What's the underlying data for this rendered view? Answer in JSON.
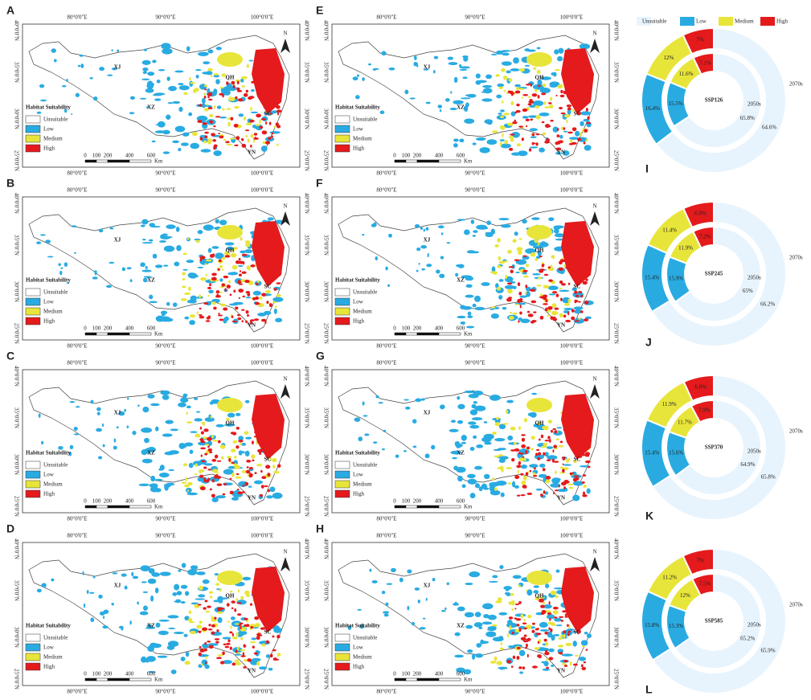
{
  "maps": {
    "panels": [
      "A",
      "B",
      "C",
      "D",
      "E",
      "F",
      "G",
      "H"
    ],
    "lon_labels": [
      "80°0'0\"E",
      "90°0'0\"E",
      "100°0'0\"E"
    ],
    "lat_labels": [
      "40°0'0\"N",
      "35°0'0\"N",
      "30°0'0\"N",
      "25°0'0\"N"
    ],
    "regions": [
      "XJ",
      "QH",
      "XZ",
      "SC",
      "YN"
    ],
    "north": "N",
    "legend_title": "Habitat Suitability",
    "legend_items": [
      {
        "name": "Unsuitable",
        "color": "#ffffff"
      },
      {
        "name": "Low",
        "color": "#29abe2"
      },
      {
        "name": "Medium",
        "color": "#e8e53a"
      },
      {
        "name": "High",
        "color": "#e41a1c"
      }
    ],
    "scale_labels": [
      "0",
      "100",
      "200",
      "400",
      "600"
    ],
    "scale_unit": "Km"
  },
  "donuts": {
    "legend": [
      {
        "name": "Unsuitable",
        "color": "#e8f4fd"
      },
      {
        "name": "Low",
        "color": "#29abe2"
      },
      {
        "name": "Medium",
        "color": "#e8e53a"
      },
      {
        "name": "High",
        "color": "#e41a1c"
      }
    ],
    "charts": [
      {
        "panel": "I",
        "label": "SSP126",
        "rings": [
          {
            "name": "2070s",
            "values": [
              64.6,
              16.4,
              12,
              7
            ],
            "value_labels": [
              "64.6%",
              "16.4%",
              "12%",
              "7%"
            ]
          },
          {
            "name": "2050s",
            "values": [
              65.8,
              15.5,
              11.6,
              7.1
            ],
            "value_labels": [
              "65.8%",
              "15.5%",
              "11.6%",
              "7.1%"
            ]
          }
        ]
      },
      {
        "panel": "J",
        "label": "SSP245",
        "rings": [
          {
            "name": "2070s",
            "values": [
              66.2,
              15.4,
              11.4,
              6.9
            ],
            "value_labels": [
              "66.2%",
              "15.4%",
              "11.4%",
              "6.9%"
            ]
          },
          {
            "name": "2050s",
            "values": [
              65,
              15.9,
              11.9,
              7.2
            ],
            "value_labels": [
              "65%",
              "15.9%",
              "11.9%",
              "7.2%"
            ]
          }
        ]
      },
      {
        "panel": "K",
        "label": "SSP370",
        "rings": [
          {
            "name": "2070s",
            "values": [
              65.8,
              15.4,
              11.9,
              6.8
            ],
            "value_labels": [
              "65.8%",
              "15.4%",
              "11.9%",
              "6.8%"
            ]
          },
          {
            "name": "2050s",
            "values": [
              64.9,
              15.6,
              11.7,
              7.9
            ],
            "value_labels": [
              "64.9%",
              "15.6%",
              "11.7%",
              "7.9%"
            ]
          }
        ]
      },
      {
        "panel": "L",
        "label": "SSP585",
        "rings": [
          {
            "name": "2070s",
            "values": [
              65.9,
              15.8,
              11.2,
              7
            ],
            "value_labels": [
              "65.9%",
              "15.8%",
              "11.2%",
              "7%"
            ]
          },
          {
            "name": "2050s",
            "values": [
              65.2,
              15.3,
              12,
              7.5
            ],
            "value_labels": [
              "65.2%",
              "15.3%",
              "12%",
              "7.5%"
            ]
          }
        ]
      }
    ]
  }
}
